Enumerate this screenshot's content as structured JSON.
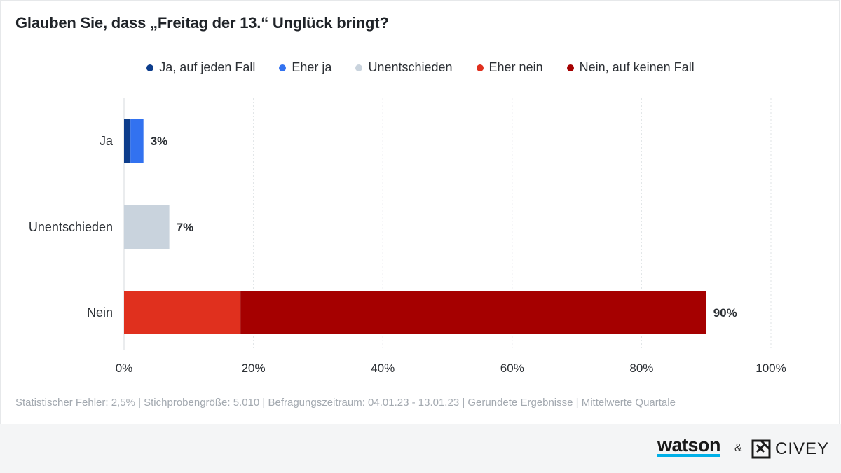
{
  "chart_data": {
    "type": "bar",
    "orientation": "horizontal",
    "stacked": true,
    "title": "Glauben Sie, dass „Freitag der 13.“ Unglück bringt?",
    "categories": [
      "Ja",
      "Unentschieden",
      "Nein"
    ],
    "series": [
      {
        "name": "Ja, auf jeden Fall",
        "color": "#0d3d8c",
        "values": [
          1,
          0,
          0
        ]
      },
      {
        "name": "Eher ja",
        "color": "#3272f0",
        "values": [
          2,
          0,
          0
        ]
      },
      {
        "name": "Unentschieden",
        "color": "#c9d3dd",
        "values": [
          0,
          7,
          0
        ]
      },
      {
        "name": "Eher nein",
        "color": "#e0301e",
        "values": [
          0,
          0,
          18
        ]
      },
      {
        "name": "Nein, auf keinen Fall",
        "color": "#a50000",
        "values": [
          0,
          0,
          72
        ]
      }
    ],
    "totals": [
      "3%",
      "7%",
      "90%"
    ],
    "x_ticks": [
      "0%",
      "20%",
      "40%",
      "60%",
      "80%",
      "100%"
    ],
    "xlim": [
      0,
      100
    ],
    "grid": true,
    "legend_position": "top-center"
  },
  "note": "Statistischer Fehler: 2,5% | Stichprobengröße: 5.010 | Befragungszeitraum: 04.01.23 - 13.01.23 | Gerundete Ergebnisse | Mittelwerte Quartale",
  "footer": {
    "brand_left": "watson",
    "separator": "&",
    "brand_right": "CIVEY"
  }
}
